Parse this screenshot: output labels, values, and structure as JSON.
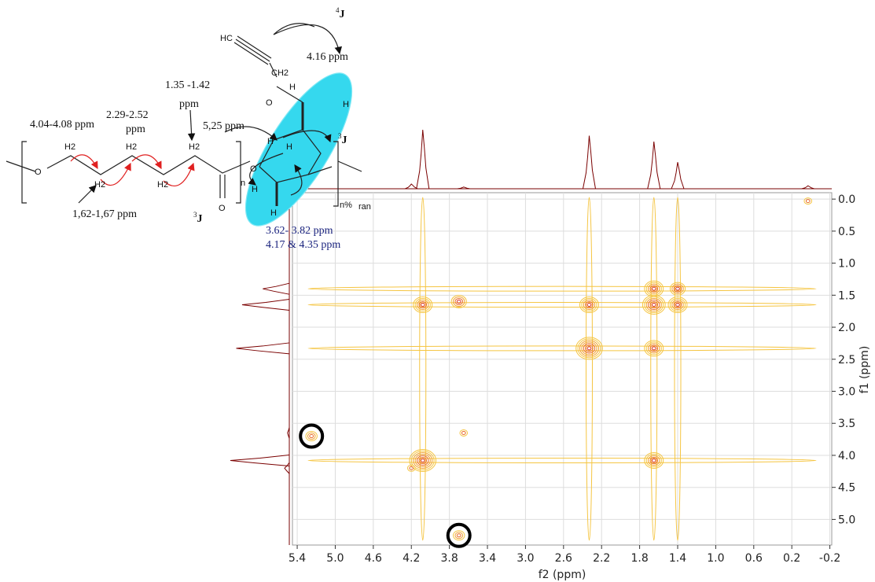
{
  "chart_data": {
    "type": "cosy",
    "x_label": "f2 (ppm)",
    "y_label": "f1 (ppm)",
    "xlim": [
      5.45,
      -0.22
    ],
    "ylim": [
      -0.1,
      5.4
    ],
    "xticks": [
      5.4,
      {
        "value": 5,
        "label": "5.0"
      },
      4.6,
      4.2,
      3.8,
      3.4,
      {
        "value": 3,
        "label": "3.0"
      },
      2.6,
      2.2,
      1.8,
      1.4,
      {
        "value": 1,
        "label": "1.0"
      },
      0.6,
      0.2,
      -0.2
    ],
    "yticks": [
      {
        "value": 0,
        "label": "0.0"
      },
      0.5,
      {
        "value": 1,
        "label": "1.0"
      },
      1.5,
      {
        "value": 2,
        "label": "2.0"
      },
      2.5,
      {
        "value": 3,
        "label": "3.0"
      },
      3.5,
      {
        "value": 4,
        "label": "4.0"
      },
      4.5,
      {
        "value": 5,
        "label": "5.0"
      }
    ],
    "grid": true,
    "x": [
      0.03,
      1.4,
      1.65,
      2.33,
      4.08,
      3.65,
      1.65,
      1.4,
      2.33,
      4.08,
      1.65,
      1.65,
      4.2,
      5.25,
      3.7,
      3.7
    ],
    "values": [
      0.03,
      1.4,
      1.65,
      2.33,
      4.08,
      3.65,
      1.4,
      1.65,
      1.65,
      1.65,
      2.33,
      4.08,
      4.2,
      3.7,
      5.25,
      1.6
    ],
    "intensity": [
      0.05,
      0.45,
      0.8,
      0.9,
      1.0,
      0.03,
      0.6,
      0.6,
      0.6,
      0.6,
      0.6,
      0.6,
      0.08,
      0.2,
      0.2,
      0.3
    ],
    "circled": [
      13,
      14
    ],
    "colors": [
      "#f5c542",
      "#f0a030",
      "#e86a2a",
      "#d8302a"
    ]
  },
  "structure": {
    "ppm_a": "4.04-4.08 ppm",
    "ppm_b1": "2.29-2.52",
    "ppm_b2": "ppm",
    "ppm_c1": "1.35 -1.42",
    "ppm_c2": "ppm",
    "ppm_d": "1,62-1,67 ppm",
    "ppm_e": "5,25 ppm",
    "ppm_f": "4.16 ppm",
    "ppm_g1": "3.62- 3.82 ppm",
    "ppm_g2": "4.17 & 4.35 ppm",
    "j3_sup": "3",
    "j_main": "J",
    "j4_sup": "4",
    "atom_o": "O",
    "atom_h2": "H2",
    "atom_hc": "HC",
    "atom_ch2": "CH2",
    "atom_h": "H",
    "sub_n": "n",
    "sub_npct": "n%",
    "sub_ran": "ran"
  }
}
